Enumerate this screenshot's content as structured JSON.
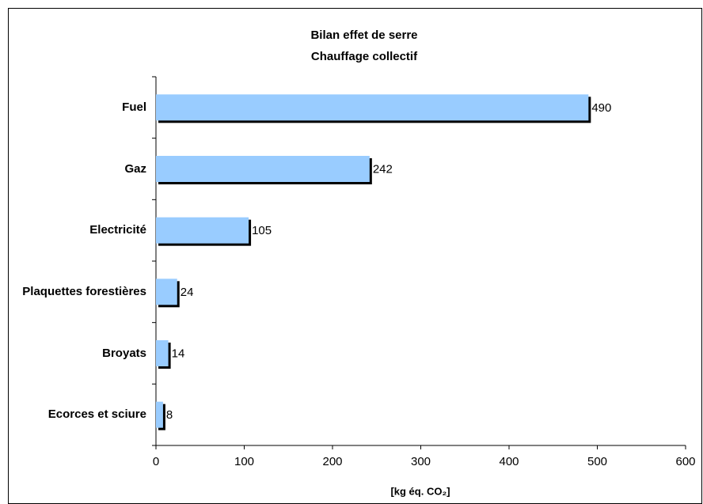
{
  "chart_data": {
    "type": "bar",
    "orientation": "horizontal",
    "title": "Bilan effet de serre",
    "subtitle": "Chauffage collectif",
    "x_label": "[kg éq. CO₂]",
    "categories": [
      "Fuel",
      "Gaz",
      "Electricité",
      "Plaquettes forestières",
      "Broyats",
      "Ecorces et sciure"
    ],
    "values": [
      490,
      242,
      105,
      24,
      14,
      8
    ],
    "color": "#99ccff",
    "shadow_color": "#000000",
    "xlim": [
      0,
      600
    ],
    "xticks": [
      0,
      100,
      200,
      300,
      400,
      500,
      600
    ],
    "grid": false
  }
}
